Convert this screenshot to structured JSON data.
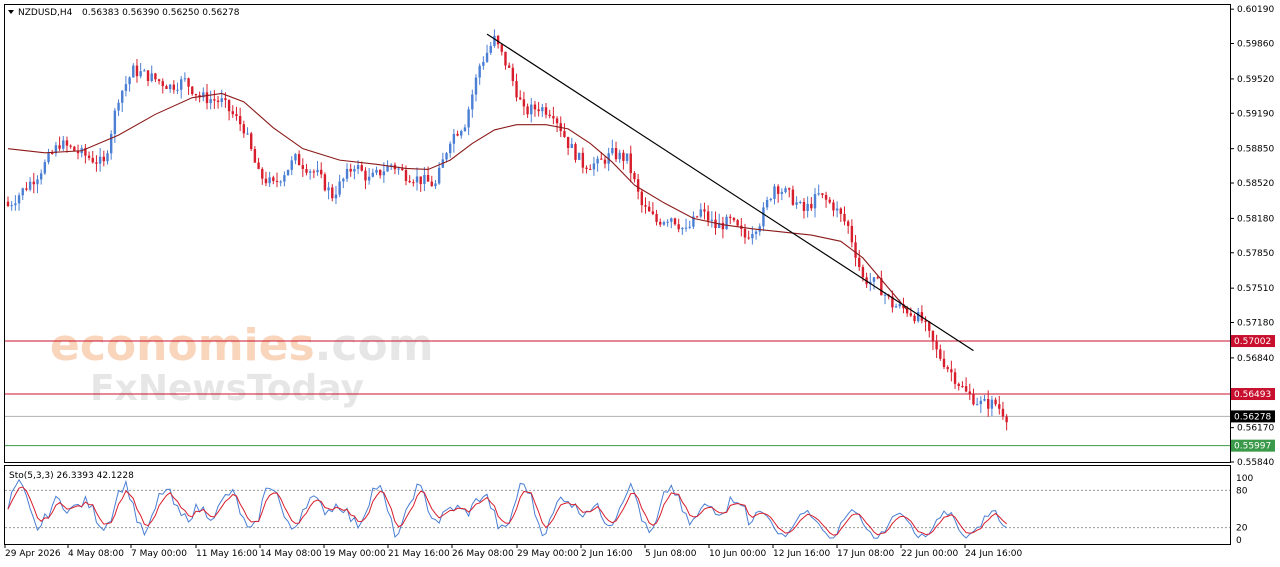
{
  "header": {
    "symbol": "NZDUSD,H4",
    "ohlc": "0.56383 0.56390 0.56250 0.56278"
  },
  "watermark": {
    "line1_main": "economies",
    "line1_suffix": ".com",
    "line2": "FxNewsToday"
  },
  "chart_data": {
    "type": "candlestick",
    "price_axis": {
      "ylim": [
        0.5584,
        0.6023
      ],
      "ticks": [
        "0.60190",
        "0.59860",
        "0.59520",
        "0.59190",
        "0.58850",
        "0.58520",
        "0.58180",
        "0.57850",
        "0.57510",
        "0.57180",
        "0.56840",
        "0.56170",
        "0.55840"
      ]
    },
    "time_axis": {
      "labels": [
        "29 Apr 2026",
        "4 May 08:00",
        "7 May 00:00",
        "11 May 16:00",
        "14 May 08:00",
        "19 May 00:00",
        "21 May 16:00",
        "26 May 08:00",
        "29 May 00:00",
        "2 Jun 16:00",
        "5 Jun 08:00",
        "10 Jun 00:00",
        "12 Jun 16:00",
        "17 Jun 08:00",
        "22 Jun 00:00",
        "24 Jun 16:00"
      ]
    },
    "close_path": [
      [
        0,
        0.583
      ],
      [
        8,
        0.586
      ],
      [
        14,
        0.589
      ],
      [
        20,
        0.588
      ],
      [
        26,
        0.587
      ],
      [
        30,
        0.5935
      ],
      [
        34,
        0.596
      ],
      [
        38,
        0.5955
      ],
      [
        44,
        0.5945
      ],
      [
        48,
        0.595
      ],
      [
        52,
        0.5935
      ],
      [
        58,
        0.593
      ],
      [
        64,
        0.5905
      ],
      [
        68,
        0.586
      ],
      [
        72,
        0.585
      ],
      [
        78,
        0.5875
      ],
      [
        84,
        0.586
      ],
      [
        88,
        0.584
      ],
      [
        94,
        0.587
      ],
      [
        98,
        0.5855
      ],
      [
        104,
        0.587
      ],
      [
        108,
        0.586
      ],
      [
        112,
        0.5855
      ],
      [
        116,
        0.585
      ],
      [
        120,
        0.5895
      ],
      [
        124,
        0.591
      ],
      [
        128,
        0.5965
      ],
      [
        132,
        0.599
      ],
      [
        136,
        0.596
      ],
      [
        140,
        0.592
      ],
      [
        144,
        0.5925
      ],
      [
        148,
        0.592
      ],
      [
        152,
        0.589
      ],
      [
        156,
        0.587
      ],
      [
        160,
        0.587
      ],
      [
        164,
        0.588
      ],
      [
        168,
        0.5875
      ],
      [
        172,
        0.583
      ],
      [
        176,
        0.5815
      ],
      [
        180,
        0.582
      ],
      [
        184,
        0.5805
      ],
      [
        188,
        0.5825
      ],
      [
        192,
        0.581
      ],
      [
        196,
        0.5815
      ],
      [
        200,
        0.58
      ],
      [
        204,
        0.5815
      ],
      [
        208,
        0.585
      ],
      [
        212,
        0.584
      ],
      [
        216,
        0.5825
      ],
      [
        220,
        0.584
      ],
      [
        224,
        0.583
      ],
      [
        228,
        0.581
      ],
      [
        232,
        0.576
      ],
      [
        236,
        0.5755
      ],
      [
        240,
        0.5735
      ],
      [
        244,
        0.573
      ],
      [
        248,
        0.572
      ],
      [
        252,
        0.569
      ],
      [
        256,
        0.567
      ],
      [
        260,
        0.565
      ],
      [
        264,
        0.564
      ],
      [
        268,
        0.564
      ],
      [
        271,
        0.5628
      ]
    ],
    "moving_average": [
      [
        0,
        0.5885
      ],
      [
        10,
        0.5881
      ],
      [
        20,
        0.5883
      ],
      [
        30,
        0.5898
      ],
      [
        40,
        0.5918
      ],
      [
        50,
        0.5934
      ],
      [
        58,
        0.5938
      ],
      [
        64,
        0.593
      ],
      [
        72,
        0.5905
      ],
      [
        80,
        0.5885
      ],
      [
        90,
        0.5874
      ],
      [
        100,
        0.587
      ],
      [
        108,
        0.5866
      ],
      [
        114,
        0.5865
      ],
      [
        120,
        0.5874
      ],
      [
        126,
        0.589
      ],
      [
        132,
        0.5903
      ],
      [
        138,
        0.5908
      ],
      [
        146,
        0.5908
      ],
      [
        152,
        0.5904
      ],
      [
        158,
        0.589
      ],
      [
        164,
        0.5872
      ],
      [
        170,
        0.585
      ],
      [
        178,
        0.5833
      ],
      [
        186,
        0.5818
      ],
      [
        194,
        0.5812
      ],
      [
        202,
        0.5808
      ],
      [
        210,
        0.5805
      ],
      [
        218,
        0.5802
      ],
      [
        226,
        0.5796
      ],
      [
        232,
        0.578
      ],
      [
        238,
        0.5755
      ],
      [
        244,
        0.573
      ]
    ],
    "trendline": [
      [
        130,
        0.5995
      ],
      [
        262,
        0.5691
      ]
    ],
    "horizontal_levels": [
      {
        "value": 0.57002,
        "label": "0.57002",
        "color": "#c8102e"
      },
      {
        "value": 0.56493,
        "label": "0.56493",
        "color": "#c8102e"
      },
      {
        "value": 0.56278,
        "label": "0.56278",
        "color": "#000000"
      },
      {
        "value": 0.55997,
        "label": "0.55997",
        "color": "#3a9a4a"
      }
    ],
    "bull_color": "#4a7fd4",
    "bear_color": "#d81e2c",
    "ma_color": "#8b1a1a",
    "trendline_color": "#000000",
    "stochastic": {
      "label": "Sto(5,3,3) 26.3393 42.1228",
      "axis_ticks": [
        "100",
        "80",
        "20",
        "0"
      ],
      "levels": [
        80,
        20
      ],
      "main_color": "#4a7fd4",
      "signal_color": "#d81e2c"
    }
  }
}
